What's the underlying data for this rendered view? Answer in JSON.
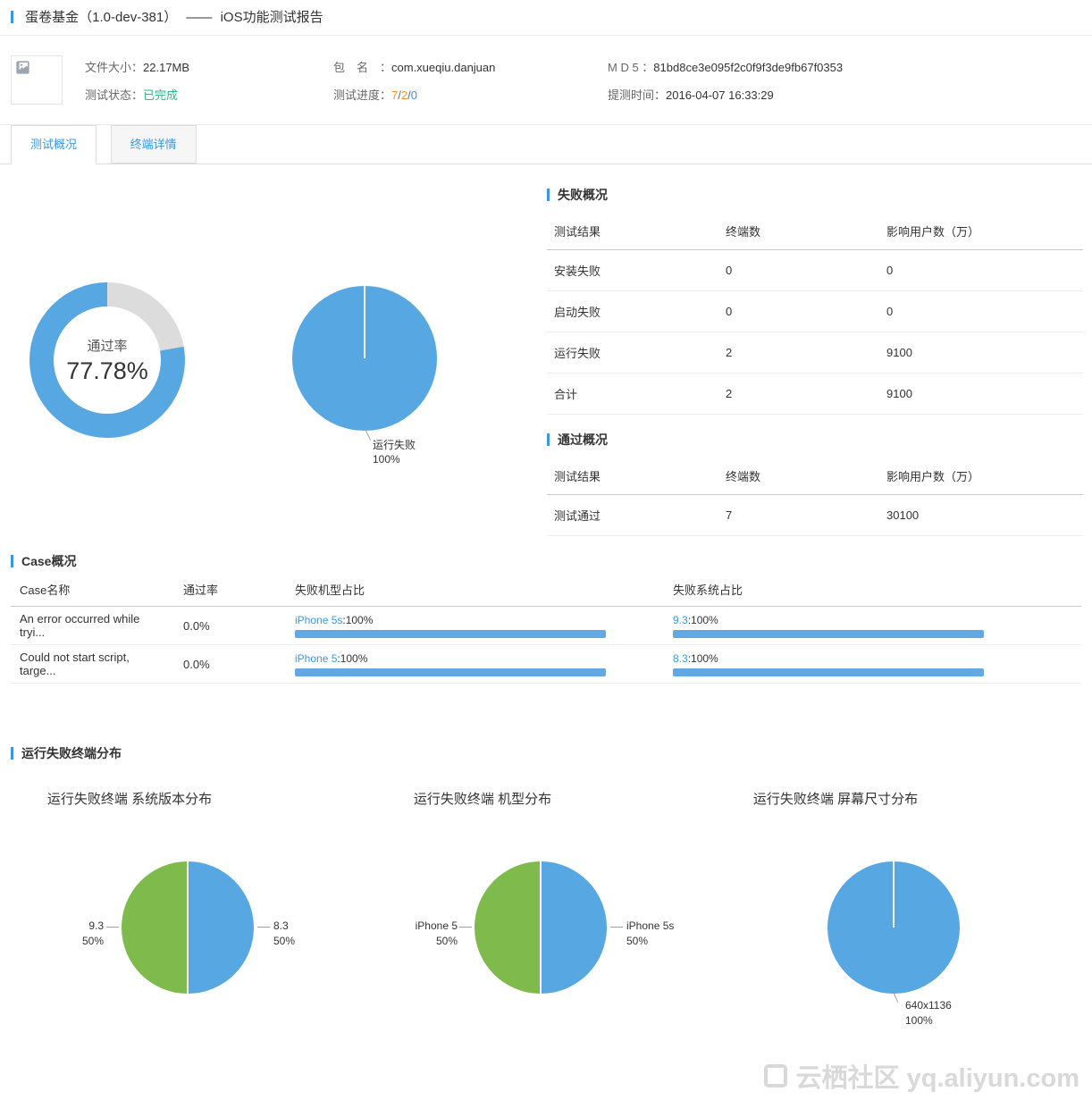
{
  "header": {
    "app_name": "蛋卷基金（1.0-dev-381）",
    "separator": "——",
    "report_title": "iOS功能测试报告"
  },
  "info": {
    "file_size_label": "文件大小：",
    "file_size": "22.17MB",
    "status_label": "测试状态：",
    "status": "已完成",
    "package_label": "包　名　：",
    "package": "com.xueqiu.danjuan",
    "progress_label": "测试进度：",
    "progress_pass": "7",
    "progress_fail": "2",
    "progress_pending": "0",
    "progress_sep": "/",
    "md5_label": "M D 5 ：",
    "md5": "81bd8ce3e095f2c0f9f3de9fb67f0353",
    "time_label": "提测时间：",
    "time": "2016-04-07 16:33:29"
  },
  "tabs": [
    {
      "label": "测试概况",
      "active": true
    },
    {
      "label": "终端详情",
      "active": false
    }
  ],
  "failure_overview": {
    "title": "失败概况",
    "headers": [
      "测试结果",
      "终端数",
      "影响用户数（万）"
    ],
    "rows": [
      {
        "name": "安装失败",
        "terminals": "0",
        "users": "0"
      },
      {
        "name": "启动失败",
        "terminals": "0",
        "users": "0"
      },
      {
        "name": "运行失败",
        "terminals": "2",
        "users": "9100"
      },
      {
        "name": "合计",
        "terminals": "2",
        "users": "9100"
      }
    ]
  },
  "pass_overview": {
    "title": "通过概况",
    "headers": [
      "测试结果",
      "终端数",
      "影响用户数（万）"
    ],
    "rows": [
      {
        "name": "测试通过",
        "terminals": "7",
        "users": "30100"
      }
    ]
  },
  "case_overview": {
    "title": "Case概况",
    "headers": [
      "Case名称",
      "通过率",
      "失败机型占比",
      "失败系统占比"
    ],
    "rows": [
      {
        "name": "An error occurred while tryi...",
        "pass_rate": "0.0%",
        "model_name": "iPhone 5s",
        "model_pct_text": ":100%",
        "model_pct": 100,
        "system_name": "9.3",
        "system_pct_text": ":100%",
        "system_pct": 100
      },
      {
        "name": "Could not start script, targe...",
        "pass_rate": "0.0%",
        "model_name": "iPhone 5",
        "model_pct_text": ":100%",
        "model_pct": 100,
        "system_name": "8.3",
        "system_pct_text": ":100%",
        "system_pct": 100
      }
    ]
  },
  "fail_distribution": {
    "title": "运行失败终端分布"
  },
  "chart_data": [
    {
      "type": "donut",
      "name": "通过率",
      "value": 77.78,
      "center_label": "通过率",
      "center_value": "77.78%",
      "colors": {
        "pass": "#57a7e3",
        "rest": "#dcdcdc"
      }
    },
    {
      "type": "pie",
      "name": "运行失败占比",
      "slices": [
        {
          "label": "运行失败",
          "value": 100,
          "pct_label": "100%",
          "color": "#57a7e3"
        }
      ]
    },
    {
      "type": "pie",
      "title": "运行失败终端 系统版本分布",
      "slices": [
        {
          "label": "8.3",
          "value": 50,
          "pct_label": "50%",
          "color": "#57a7e3"
        },
        {
          "label": "9.3",
          "value": 50,
          "pct_label": "50%",
          "color": "#7fbb4c"
        }
      ]
    },
    {
      "type": "pie",
      "title": "运行失败终端 机型分布",
      "slices": [
        {
          "label": "iPhone 5s",
          "value": 50,
          "pct_label": "50%",
          "color": "#57a7e3"
        },
        {
          "label": "iPhone 5",
          "value": 50,
          "pct_label": "50%",
          "color": "#7fbb4c"
        }
      ]
    },
    {
      "type": "pie",
      "title": "运行失败终端 屏幕尺寸分布",
      "slices": [
        {
          "label": "640x1136",
          "value": 100,
          "pct_label": "100%",
          "color": "#57a7e3"
        }
      ]
    }
  ],
  "watermark": {
    "text": "云栖社区 yq.aliyun.com"
  },
  "colors": {
    "accent_blue": "#3b97e3",
    "link_blue": "#3b97e3",
    "chart_blue": "#57a7e3",
    "chart_green": "#7fbb4c",
    "ring_gray": "#dcdcdc",
    "bar_blue": "#63a8e2",
    "red": "#e8504a",
    "num_green": "#49b84e",
    "status_green": "#2fb880",
    "orange": "#ff9326",
    "watermark_gray": "#d9d9d9"
  }
}
